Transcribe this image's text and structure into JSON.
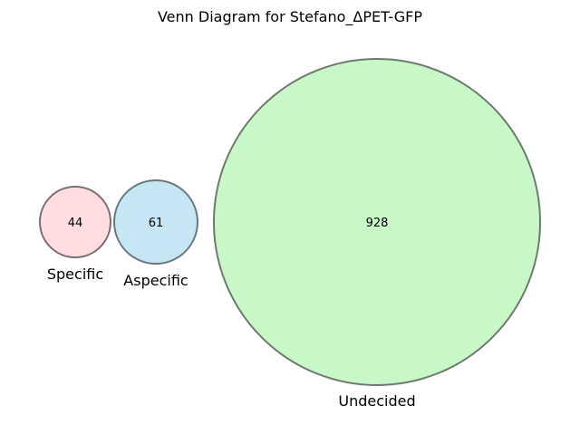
{
  "title": "Venn Diagram for Stefano_ΔPET-GFP",
  "sets": [
    {
      "key": "specific",
      "label": "Specific",
      "count": "44",
      "fill": "#ffdde1",
      "stroke": "#7a6e70"
    },
    {
      "key": "aspecific",
      "label": "Aspecific",
      "count": "61",
      "fill": "#c6e6f4",
      "stroke": "#6c7880"
    },
    {
      "key": "undecided",
      "label": "Undecided",
      "count": "928",
      "fill": "#c8f8c8",
      "stroke": "#6f7a6f"
    }
  ]
}
